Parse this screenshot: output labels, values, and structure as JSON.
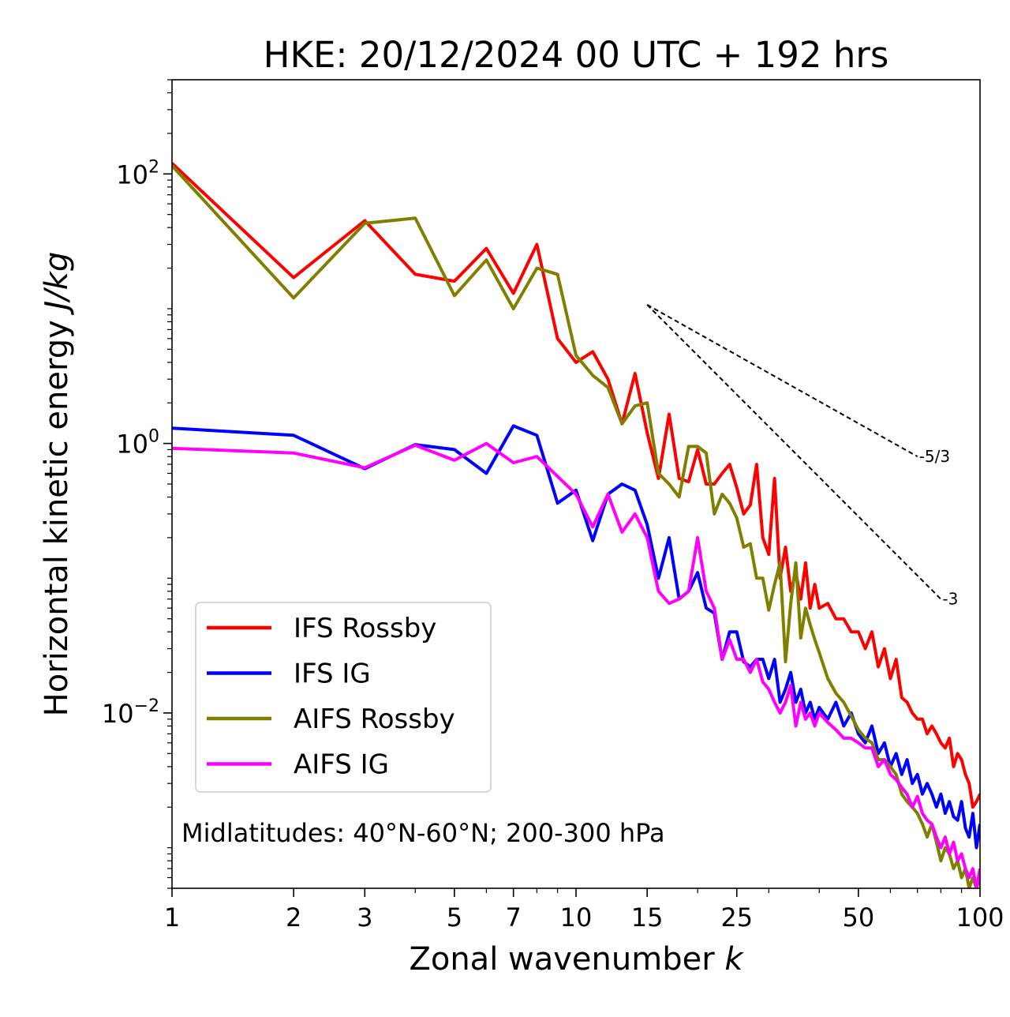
{
  "chart_data": {
    "type": "line",
    "title": "HKE: 20/12/2024 00 UTC + 192 hrs",
    "xlabel_main": "Zonal wavenumber ",
    "xlabel_var": "k",
    "ylabel_main": "Horizontal kinetic energy ",
    "ylabel_unit": "J/kg",
    "x_scale": "log",
    "y_scale": "log",
    "xlim": [
      1,
      100
    ],
    "ylim": [
      0.0005,
      500
    ],
    "x_ticks": [
      1,
      2,
      3,
      5,
      7,
      10,
      15,
      25,
      50,
      100
    ],
    "x_tick_labels": [
      "1",
      "2",
      "3",
      "5",
      "7",
      "10",
      "15",
      "25",
      "50",
      "100"
    ],
    "y_ticks": [
      {
        "value": 100,
        "base": "10",
        "exp": "2"
      },
      {
        "value": 1,
        "base": "10",
        "exp": "0"
      },
      {
        "value": 0.01,
        "base": "10",
        "exp": "−2"
      }
    ],
    "legend_position": "lower-left",
    "annotation": "Midlatitudes: 40°N-60°N; 200-300 hPa",
    "reference_slopes": [
      {
        "label": "-5/3",
        "x": [
          15,
          70
        ],
        "y": [
          10.7,
          0.8
        ]
      },
      {
        "label": "-3",
        "x": [
          15,
          80
        ],
        "y": [
          10.7,
          0.07
        ]
      }
    ],
    "series": [
      {
        "name": "IFS Rossby",
        "color": "#ff0000",
        "points": [
          [
            1,
            120
          ],
          [
            2,
            17
          ],
          [
            3,
            45
          ],
          [
            4,
            18
          ],
          [
            5,
            16
          ],
          [
            6,
            28
          ],
          [
            7,
            13
          ],
          [
            8,
            30
          ],
          [
            9,
            6
          ],
          [
            10,
            4
          ],
          [
            11,
            4.8
          ],
          [
            12,
            3
          ],
          [
            13,
            1.4
          ],
          [
            14,
            3.3
          ],
          [
            15,
            1.2
          ],
          [
            16,
            0.55
          ],
          [
            17,
            1.65
          ],
          [
            18,
            0.55
          ],
          [
            19,
            0.52
          ],
          [
            20,
            0.9
          ],
          [
            21,
            0.5
          ],
          [
            22,
            0.5
          ],
          [
            23,
            0.6
          ],
          [
            24,
            0.7
          ],
          [
            25,
            0.47
          ],
          [
            26,
            0.3
          ],
          [
            27,
            0.35
          ],
          [
            28,
            0.7
          ],
          [
            29,
            0.2
          ],
          [
            30,
            0.15
          ],
          [
            31,
            0.55
          ],
          [
            32,
            0.1
          ],
          [
            33,
            0.17
          ],
          [
            34,
            0.08
          ],
          [
            35,
            0.11
          ],
          [
            36,
            0.07
          ],
          [
            37,
            0.13
          ],
          [
            38,
            0.06
          ],
          [
            39,
            0.09
          ],
          [
            40,
            0.06
          ],
          [
            42,
            0.065
          ],
          [
            44,
            0.05
          ],
          [
            46,
            0.05
          ],
          [
            48,
            0.04
          ],
          [
            50,
            0.04
          ],
          [
            52,
            0.03
          ],
          [
            54,
            0.04
          ],
          [
            56,
            0.022
          ],
          [
            58,
            0.03
          ],
          [
            60,
            0.018
          ],
          [
            62,
            0.025
          ],
          [
            64,
            0.013
          ],
          [
            66,
            0.012
          ],
          [
            68,
            0.01
          ],
          [
            70,
            0.009
          ],
          [
            72,
            0.009
          ],
          [
            74,
            0.007
          ],
          [
            76,
            0.008
          ],
          [
            78,
            0.007
          ],
          [
            80,
            0.006
          ],
          [
            82,
            0.0055
          ],
          [
            84,
            0.0065
          ],
          [
            86,
            0.004
          ],
          [
            88,
            0.005
          ],
          [
            90,
            0.0045
          ],
          [
            92,
            0.0035
          ],
          [
            94,
            0.003
          ],
          [
            96,
            0.002
          ],
          [
            98,
            0.0022
          ],
          [
            100,
            0.0025
          ]
        ]
      },
      {
        "name": "IFS IG",
        "color": "#0000ff",
        "points": [
          [
            1,
            1.3
          ],
          [
            2,
            1.15
          ],
          [
            3,
            0.65
          ],
          [
            4,
            0.98
          ],
          [
            5,
            0.9
          ],
          [
            6,
            0.6
          ],
          [
            7,
            1.35
          ],
          [
            8,
            1.15
          ],
          [
            9,
            0.36
          ],
          [
            10,
            0.45
          ],
          [
            11,
            0.19
          ],
          [
            12,
            0.42
          ],
          [
            13,
            0.5
          ],
          [
            14,
            0.45
          ],
          [
            15,
            0.25
          ],
          [
            16,
            0.1
          ],
          [
            17,
            0.2
          ],
          [
            18,
            0.07
          ],
          [
            19,
            0.08
          ],
          [
            20,
            0.11
          ],
          [
            21,
            0.06
          ],
          [
            22,
            0.055
          ],
          [
            23,
            0.025
          ],
          [
            24,
            0.04
          ],
          [
            25,
            0.04
          ],
          [
            26,
            0.024
          ],
          [
            27,
            0.022
          ],
          [
            28,
            0.025
          ],
          [
            29,
            0.025
          ],
          [
            30,
            0.018
          ],
          [
            31,
            0.025
          ],
          [
            32,
            0.012
          ],
          [
            33,
            0.015
          ],
          [
            34,
            0.02
          ],
          [
            35,
            0.012
          ],
          [
            36,
            0.015
          ],
          [
            37,
            0.01
          ],
          [
            38,
            0.012
          ],
          [
            39,
            0.009
          ],
          [
            40,
            0.011
          ],
          [
            42,
            0.009
          ],
          [
            44,
            0.012
          ],
          [
            46,
            0.008
          ],
          [
            48,
            0.01
          ],
          [
            50,
            0.007
          ],
          [
            52,
            0.006
          ],
          [
            54,
            0.008
          ],
          [
            56,
            0.005
          ],
          [
            58,
            0.006
          ],
          [
            60,
            0.004
          ],
          [
            62,
            0.005
          ],
          [
            64,
            0.0035
          ],
          [
            66,
            0.0045
          ],
          [
            68,
            0.003
          ],
          [
            70,
            0.0035
          ],
          [
            72,
            0.0025
          ],
          [
            74,
            0.003
          ],
          [
            76,
            0.0025
          ],
          [
            78,
            0.002
          ],
          [
            80,
            0.0025
          ],
          [
            82,
            0.0018
          ],
          [
            84,
            0.0022
          ],
          [
            86,
            0.0017
          ],
          [
            88,
            0.0016
          ],
          [
            90,
            0.0022
          ],
          [
            92,
            0.0014
          ],
          [
            94,
            0.0012
          ],
          [
            96,
            0.0018
          ],
          [
            98,
            0.001
          ],
          [
            100,
            0.0015
          ]
        ]
      },
      {
        "name": "AIFS Rossby",
        "color": "#808000",
        "points": [
          [
            1,
            115
          ],
          [
            2,
            12
          ],
          [
            3,
            43
          ],
          [
            4,
            47
          ],
          [
            5,
            12.5
          ],
          [
            6,
            23
          ],
          [
            7,
            10
          ],
          [
            8,
            20
          ],
          [
            9,
            18
          ],
          [
            10,
            4.5
          ],
          [
            11,
            3.2
          ],
          [
            12,
            2.6
          ],
          [
            13,
            1.4
          ],
          [
            14,
            1.9
          ],
          [
            15,
            2
          ],
          [
            16,
            0.6
          ],
          [
            17,
            0.5
          ],
          [
            18,
            0.4
          ],
          [
            19,
            0.95
          ],
          [
            20,
            0.95
          ],
          [
            21,
            0.85
          ],
          [
            22,
            0.3
          ],
          [
            23,
            0.42
          ],
          [
            24,
            0.36
          ],
          [
            25,
            0.28
          ],
          [
            26,
            0.17
          ],
          [
            27,
            0.18
          ],
          [
            28,
            0.1
          ],
          [
            29,
            0.1
          ],
          [
            30,
            0.058
          ],
          [
            31,
            0.09
          ],
          [
            32,
            0.13
          ],
          [
            33,
            0.024
          ],
          [
            34,
            0.065
          ],
          [
            35,
            0.13
          ],
          [
            36,
            0.036
          ],
          [
            37,
            0.06
          ],
          [
            38,
            0.045
          ],
          [
            39,
            0.035
          ],
          [
            40,
            0.028
          ],
          [
            42,
            0.018
          ],
          [
            44,
            0.014
          ],
          [
            46,
            0.012
          ],
          [
            48,
            0.0095
          ],
          [
            50,
            0.0075
          ],
          [
            52,
            0.0065
          ],
          [
            54,
            0.006
          ],
          [
            56,
            0.0045
          ],
          [
            58,
            0.0045
          ],
          [
            60,
            0.004
          ],
          [
            62,
            0.0035
          ],
          [
            64,
            0.0025
          ],
          [
            66,
            0.0022
          ],
          [
            68,
            0.002
          ],
          [
            70,
            0.0018
          ],
          [
            72,
            0.0015
          ],
          [
            74,
            0.0012
          ],
          [
            76,
            0.0015
          ],
          [
            78,
            0.0011
          ],
          [
            80,
            0.0008
          ],
          [
            82,
            0.001
          ],
          [
            84,
            0.0009
          ],
          [
            86,
            0.0007
          ],
          [
            88,
            0.0008
          ],
          [
            90,
            0.0006
          ],
          [
            92,
            0.0007
          ],
          [
            94,
            0.0005
          ],
          [
            96,
            0.0006
          ],
          [
            98,
            0.0005
          ],
          [
            100,
            0.0006
          ]
        ]
      },
      {
        "name": "AIFS IG",
        "color": "#ff00ff",
        "points": [
          [
            1,
            0.92
          ],
          [
            2,
            0.85
          ],
          [
            3,
            0.66
          ],
          [
            4,
            0.97
          ],
          [
            5,
            0.75
          ],
          [
            6,
            1.0
          ],
          [
            7,
            0.72
          ],
          [
            8,
            0.8
          ],
          [
            9,
            0.57
          ],
          [
            10,
            0.42
          ],
          [
            11,
            0.24
          ],
          [
            12,
            0.42
          ],
          [
            13,
            0.22
          ],
          [
            14,
            0.3
          ],
          [
            15,
            0.2
          ],
          [
            16,
            0.08
          ],
          [
            17,
            0.065
          ],
          [
            18,
            0.07
          ],
          [
            19,
            0.08
          ],
          [
            20,
            0.2
          ],
          [
            21,
            0.08
          ],
          [
            22,
            0.06
          ],
          [
            23,
            0.025
          ],
          [
            24,
            0.035
          ],
          [
            25,
            0.025
          ],
          [
            26,
            0.025
          ],
          [
            27,
            0.02
          ],
          [
            28,
            0.025
          ],
          [
            29,
            0.017
          ],
          [
            30,
            0.015
          ],
          [
            31,
            0.012
          ],
          [
            32,
            0.01
          ],
          [
            33,
            0.012
          ],
          [
            34,
            0.016
          ],
          [
            35,
            0.008
          ],
          [
            36,
            0.012
          ],
          [
            37,
            0.009
          ],
          [
            38,
            0.01
          ],
          [
            39,
            0.008
          ],
          [
            40,
            0.01
          ],
          [
            42,
            0.0085
          ],
          [
            44,
            0.0075
          ],
          [
            46,
            0.0065
          ],
          [
            48,
            0.0065
          ],
          [
            50,
            0.006
          ],
          [
            52,
            0.0055
          ],
          [
            54,
            0.0055
          ],
          [
            56,
            0.004
          ],
          [
            58,
            0.0045
          ],
          [
            60,
            0.0035
          ],
          [
            62,
            0.0032
          ],
          [
            64,
            0.0028
          ],
          [
            66,
            0.0025
          ],
          [
            68,
            0.002
          ],
          [
            70,
            0.0024
          ],
          [
            72,
            0.0018
          ],
          [
            74,
            0.0016
          ],
          [
            76,
            0.0015
          ],
          [
            78,
            0.0012
          ],
          [
            80,
            0.001
          ],
          [
            82,
            0.0012
          ],
          [
            84,
            0.0009
          ],
          [
            86,
            0.0011
          ],
          [
            88,
            0.0008
          ],
          [
            90,
            0.0009
          ],
          [
            92,
            0.0007
          ],
          [
            94,
            0.0006
          ],
          [
            96,
            0.0007
          ],
          [
            98,
            0.0005
          ],
          [
            100,
            0.0007
          ]
        ]
      }
    ]
  }
}
